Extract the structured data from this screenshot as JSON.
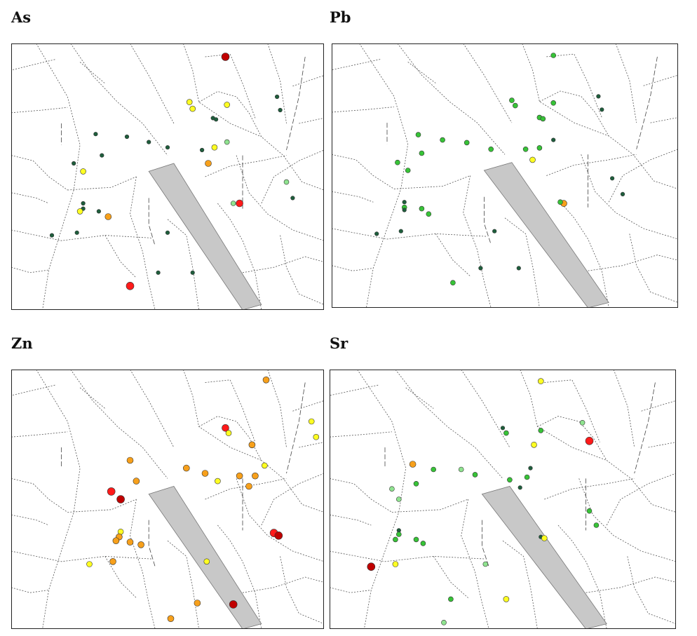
{
  "colors": {
    "dark_green": "#1e5e3c",
    "green": "#37c337",
    "light_green": "#8fe38f",
    "yellow": "#ffff22",
    "orange": "#f7a01b",
    "red": "#ff1a1a",
    "dark_red": "#c00000",
    "runway": "#c8c8c8"
  },
  "panels": [
    {
      "id": "as",
      "title": "As"
    },
    {
      "id": "pb",
      "title": "Pb"
    },
    {
      "id": "zn",
      "title": "Zn"
    },
    {
      "id": "sr",
      "title": "Sr"
    }
  ]
}
